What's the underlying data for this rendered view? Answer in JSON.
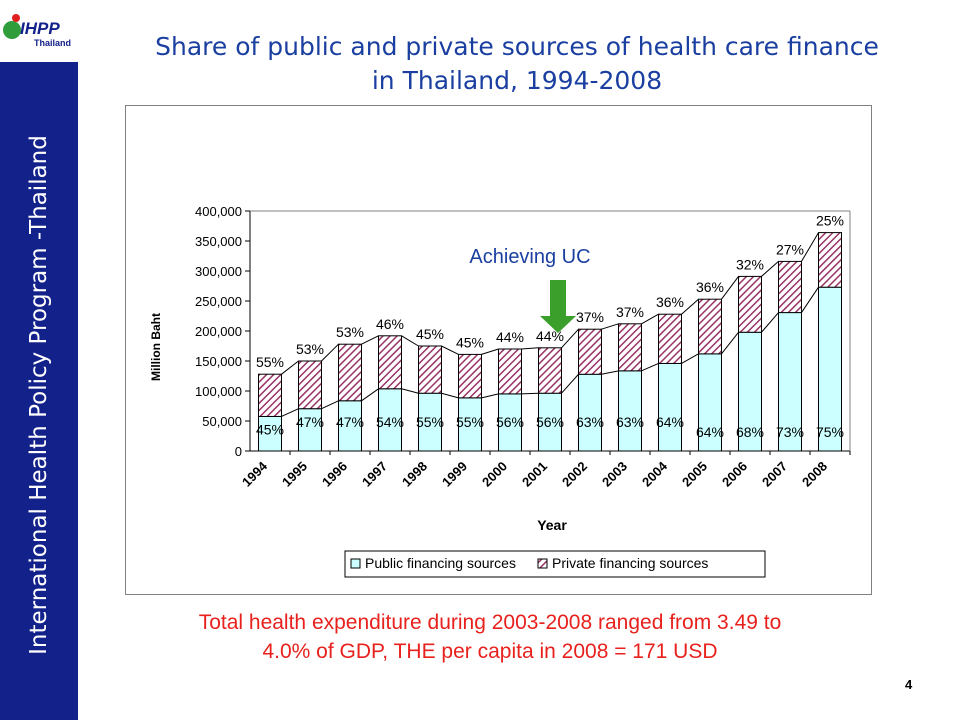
{
  "sidebar": {
    "text": "International Health Policy Program -Thailand"
  },
  "logo": {
    "main": "IHPP",
    "sub": "Thailand"
  },
  "slide": {
    "title_line1": "Share of public and private sources of health care finance",
    "title_line2": "in Thailand, 1994-2008",
    "footnote_line1": "Total health expenditure during 2003-2008 ranged from 3.49 to",
    "footnote_line2": "4.0% of GDP, THE per capita in 2008 = 171 USD",
    "page_number": "4"
  },
  "annotation": {
    "text": "Achieving UC",
    "year": "2001",
    "arrow_color": "#3aa02b",
    "text_color": "#1a3fa0"
  },
  "chart_data": {
    "type": "bar",
    "stacked": true,
    "categories": [
      "1994",
      "1995",
      "1996",
      "1997",
      "1998",
      "1999",
      "2000",
      "2001",
      "2002",
      "2003",
      "2004",
      "2005",
      "2006",
      "2007",
      "2008"
    ],
    "xlabel": "Year",
    "ylabel": "Million Baht",
    "ylim": [
      0,
      400000
    ],
    "yticks": [
      "0",
      "50,000",
      "100,000",
      "150,000",
      "200,000",
      "250,000",
      "300,000",
      "350,000",
      "400,000"
    ],
    "legend_position": "bottom",
    "totals": [
      128000,
      150000,
      178000,
      192000,
      175000,
      161000,
      170000,
      172000,
      203000,
      212000,
      228000,
      253000,
      291000,
      316000,
      364000
    ],
    "series": [
      {
        "name": "Public financing sources",
        "color": "#ccffff",
        "share_labels": [
          "45%",
          "47%",
          "47%",
          "54%",
          "55%",
          "55%",
          "56%",
          "56%",
          "63%",
          "63%",
          "64%",
          "64%",
          "68%",
          "73%",
          "75%"
        ],
        "values": [
          57600,
          70500,
          83700,
          103700,
          96300,
          88600,
          95200,
          96300,
          127900,
          133600,
          145900,
          161900,
          197900,
          230700,
          273000
        ]
      },
      {
        "name": "Private financing sources",
        "color": "#993366",
        "pattern": "diagonal-hatch",
        "share_labels": [
          "55%",
          "53%",
          "53%",
          "46%",
          "45%",
          "45%",
          "44%",
          "44%",
          "37%",
          "37%",
          "36%",
          "36%",
          "32%",
          "27%",
          "25%"
        ],
        "values": [
          70400,
          79500,
          94300,
          88300,
          78700,
          72400,
          74800,
          75700,
          75100,
          78400,
          82100,
          91100,
          93100,
          85300,
          91000
        ]
      }
    ]
  }
}
